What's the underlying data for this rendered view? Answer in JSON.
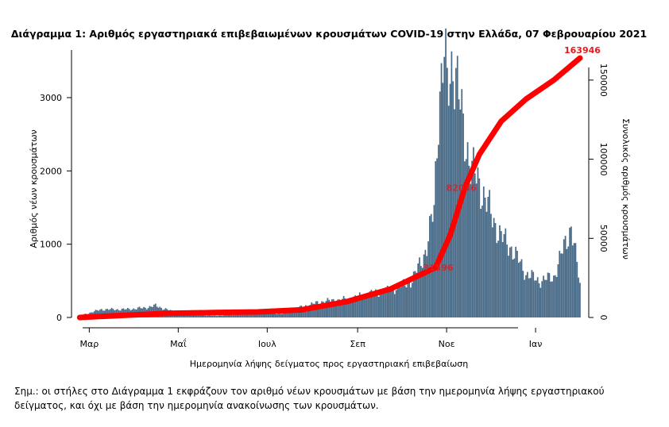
{
  "chart_data": {
    "type": "bar",
    "title": "Διάγραμμα 1: Αριθμός εργαστηριακά επιβεβαιωμένων κρουσμάτων COVID-19 στην Ελλάδα, 07 Φεβρουαρίου 2021",
    "xlabel": "Ημερομηνία λήψης δείγματος προς εργαστηριακή επιβεβαίωση",
    "ylabel": "Αριθμός νέων κρουσμάτων",
    "y2label": "Συνολικός αριθμός κρουσμάτων",
    "x_tick_labels": [
      "Μαρ",
      "Μαΐ",
      "Ιουλ",
      "Σεπ",
      "Νοε",
      "Ιαν"
    ],
    "x_tick_dates": [
      "2020-03-01",
      "2020-05-01",
      "2020-07-01",
      "2020-09-01",
      "2020-11-01",
      "2021-01-01"
    ],
    "x_range": [
      "2020-02-26",
      "2021-02-07"
    ],
    "ylim": [
      0,
      3650
    ],
    "y_ticks": [
      0,
      1000,
      2000,
      3000
    ],
    "y2lim": [
      0,
      169000
    ],
    "y2_ticks": [
      0,
      50000,
      100000,
      150000
    ],
    "series": [
      {
        "name": "",
        "type": "bar",
        "axis": "left",
        "color": "#4a6b88",
        "points": [
          [
            "2020-03-01",
            25
          ],
          [
            "2020-03-16",
            110
          ],
          [
            "2020-04-01",
            110
          ],
          [
            "2020-04-14",
            130
          ],
          [
            "2020-04-22",
            160
          ],
          [
            "2020-05-10",
            40
          ],
          [
            "2020-06-01",
            25
          ],
          [
            "2020-06-15",
            40
          ],
          [
            "2020-07-01",
            50
          ],
          [
            "2020-07-20",
            55
          ],
          [
            "2020-08-01",
            150
          ],
          [
            "2020-08-15",
            220
          ],
          [
            "2020-09-01",
            250
          ],
          [
            "2020-09-15",
            320
          ],
          [
            "2020-10-01",
            380
          ],
          [
            "2020-10-15",
            500
          ],
          [
            "2020-10-25",
            950
          ],
          [
            "2020-10-30",
            1500
          ],
          [
            "2020-11-02",
            2900
          ],
          [
            "2020-11-06",
            3550
          ],
          [
            "2020-11-08",
            3100
          ],
          [
            "2020-11-12",
            3580
          ],
          [
            "2020-11-18",
            2700
          ],
          [
            "2020-11-25",
            2000
          ],
          [
            "2020-12-01",
            1800
          ],
          [
            "2020-12-08",
            1400
          ],
          [
            "2020-12-15",
            1100
          ],
          [
            "2020-12-22",
            950
          ],
          [
            "2021-01-01",
            600
          ],
          [
            "2021-01-10",
            500
          ],
          [
            "2021-01-20",
            550
          ],
          [
            "2021-02-01",
            1250
          ],
          [
            "2021-02-07",
            450
          ]
        ]
      },
      {
        "name": "",
        "type": "line",
        "axis": "right",
        "color": "#ff0000",
        "points": [
          [
            "2020-03-01",
            0
          ],
          [
            "2020-04-01",
            1400
          ],
          [
            "2020-05-01",
            2600
          ],
          [
            "2020-06-01",
            3100
          ],
          [
            "2020-07-01",
            3500
          ],
          [
            "2020-07-31",
            4800
          ],
          [
            "2020-08-31",
            10000
          ],
          [
            "2020-09-30",
            18000
          ],
          [
            "2020-10-31",
            31596
          ],
          [
            "2020-11-10",
            52000
          ],
          [
            "2020-11-20",
            82000
          ],
          [
            "2020-11-30",
            103000
          ],
          [
            "2020-12-15",
            124000
          ],
          [
            "2021-01-01",
            138000
          ],
          [
            "2021-01-20",
            150000
          ],
          [
            "2021-02-07",
            163946
          ]
        ]
      }
    ],
    "annotations": [
      {
        "text": "163946",
        "x": "2021-02-07",
        "y": 163946,
        "axis": "right"
      },
      {
        "text": "82036",
        "x": "2020-11-16",
        "y": 82036,
        "axis": "right"
      },
      {
        "text": "31596",
        "x": "2020-10-31",
        "y": 31596,
        "axis": "right"
      }
    ],
    "legend": "none",
    "grid": false
  },
  "note_text": "Σημ.: οι στήλες στο Διάγραμμα 1 εκφράζουν τον αριθμό νέων κρουσμάτων με βάση την ημερομηνία λήψης εργαστηριακού δείγματος, και όχι με βάση την ημερομηνία ανακοίνωσης των κρουσμάτων."
}
